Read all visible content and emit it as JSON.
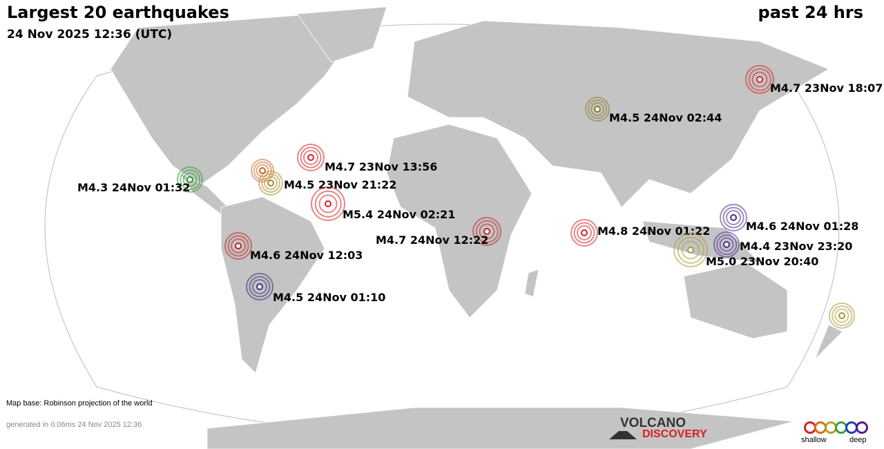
{
  "header": {
    "title": "Largest 20 earthquakes",
    "subtitle": "24 Nov 2025 12:36 (UTC)",
    "period": "past 24 hrs"
  },
  "footer": {
    "map_base": "Map base: Robinson projection of the world",
    "generated": "generated in 0.06ms 24 Nov 2025 12:36"
  },
  "logo": {
    "line1": "VOLCANO",
    "line2": "DISCOVERY"
  },
  "legend": {
    "shallow": "shallow",
    "deep": "deep",
    "colors": [
      "#d42020",
      "#e06a1a",
      "#b8a020",
      "#3aa03a",
      "#2040c0",
      "#502090"
    ]
  },
  "quakes": [
    {
      "label": "M4.7 23Nov 18:07",
      "color": "#d42020"
    },
    {
      "label": "M4.5 24Nov 02:44",
      "color": "#8a7a20"
    },
    {
      "label": "M4.7 23Nov 13:56",
      "color": "#d42020"
    },
    {
      "label": "",
      "color": "#d0602a"
    },
    {
      "label": "M4.5 23Nov 21:22",
      "color": "#a88a20"
    },
    {
      "label": "M4.3 24Nov 01:32",
      "color": "#2a9a2a"
    },
    {
      "label": "M5.4 24Nov 02:21",
      "color": "#d42020"
    },
    {
      "label": "M4.7 24Nov 12:22",
      "color": "#c42020"
    },
    {
      "label": "M4.8 24Nov 01:22",
      "color": "#d42020"
    },
    {
      "label": "M4.6 24Nov 01:28",
      "color": "#4a2a90"
    },
    {
      "label": "M4.4 23Nov 23:20",
      "color": "#4a2a90"
    },
    {
      "label": "M5.0 23Nov 20:40",
      "color": "#a89a30"
    },
    {
      "label": "M4.6 24Nov 12:03",
      "color": "#c42020"
    },
    {
      "label": "M4.5 24Nov 01:10",
      "color": "#3a2a80"
    },
    {
      "label": "",
      "color": "#a89a30"
    }
  ]
}
